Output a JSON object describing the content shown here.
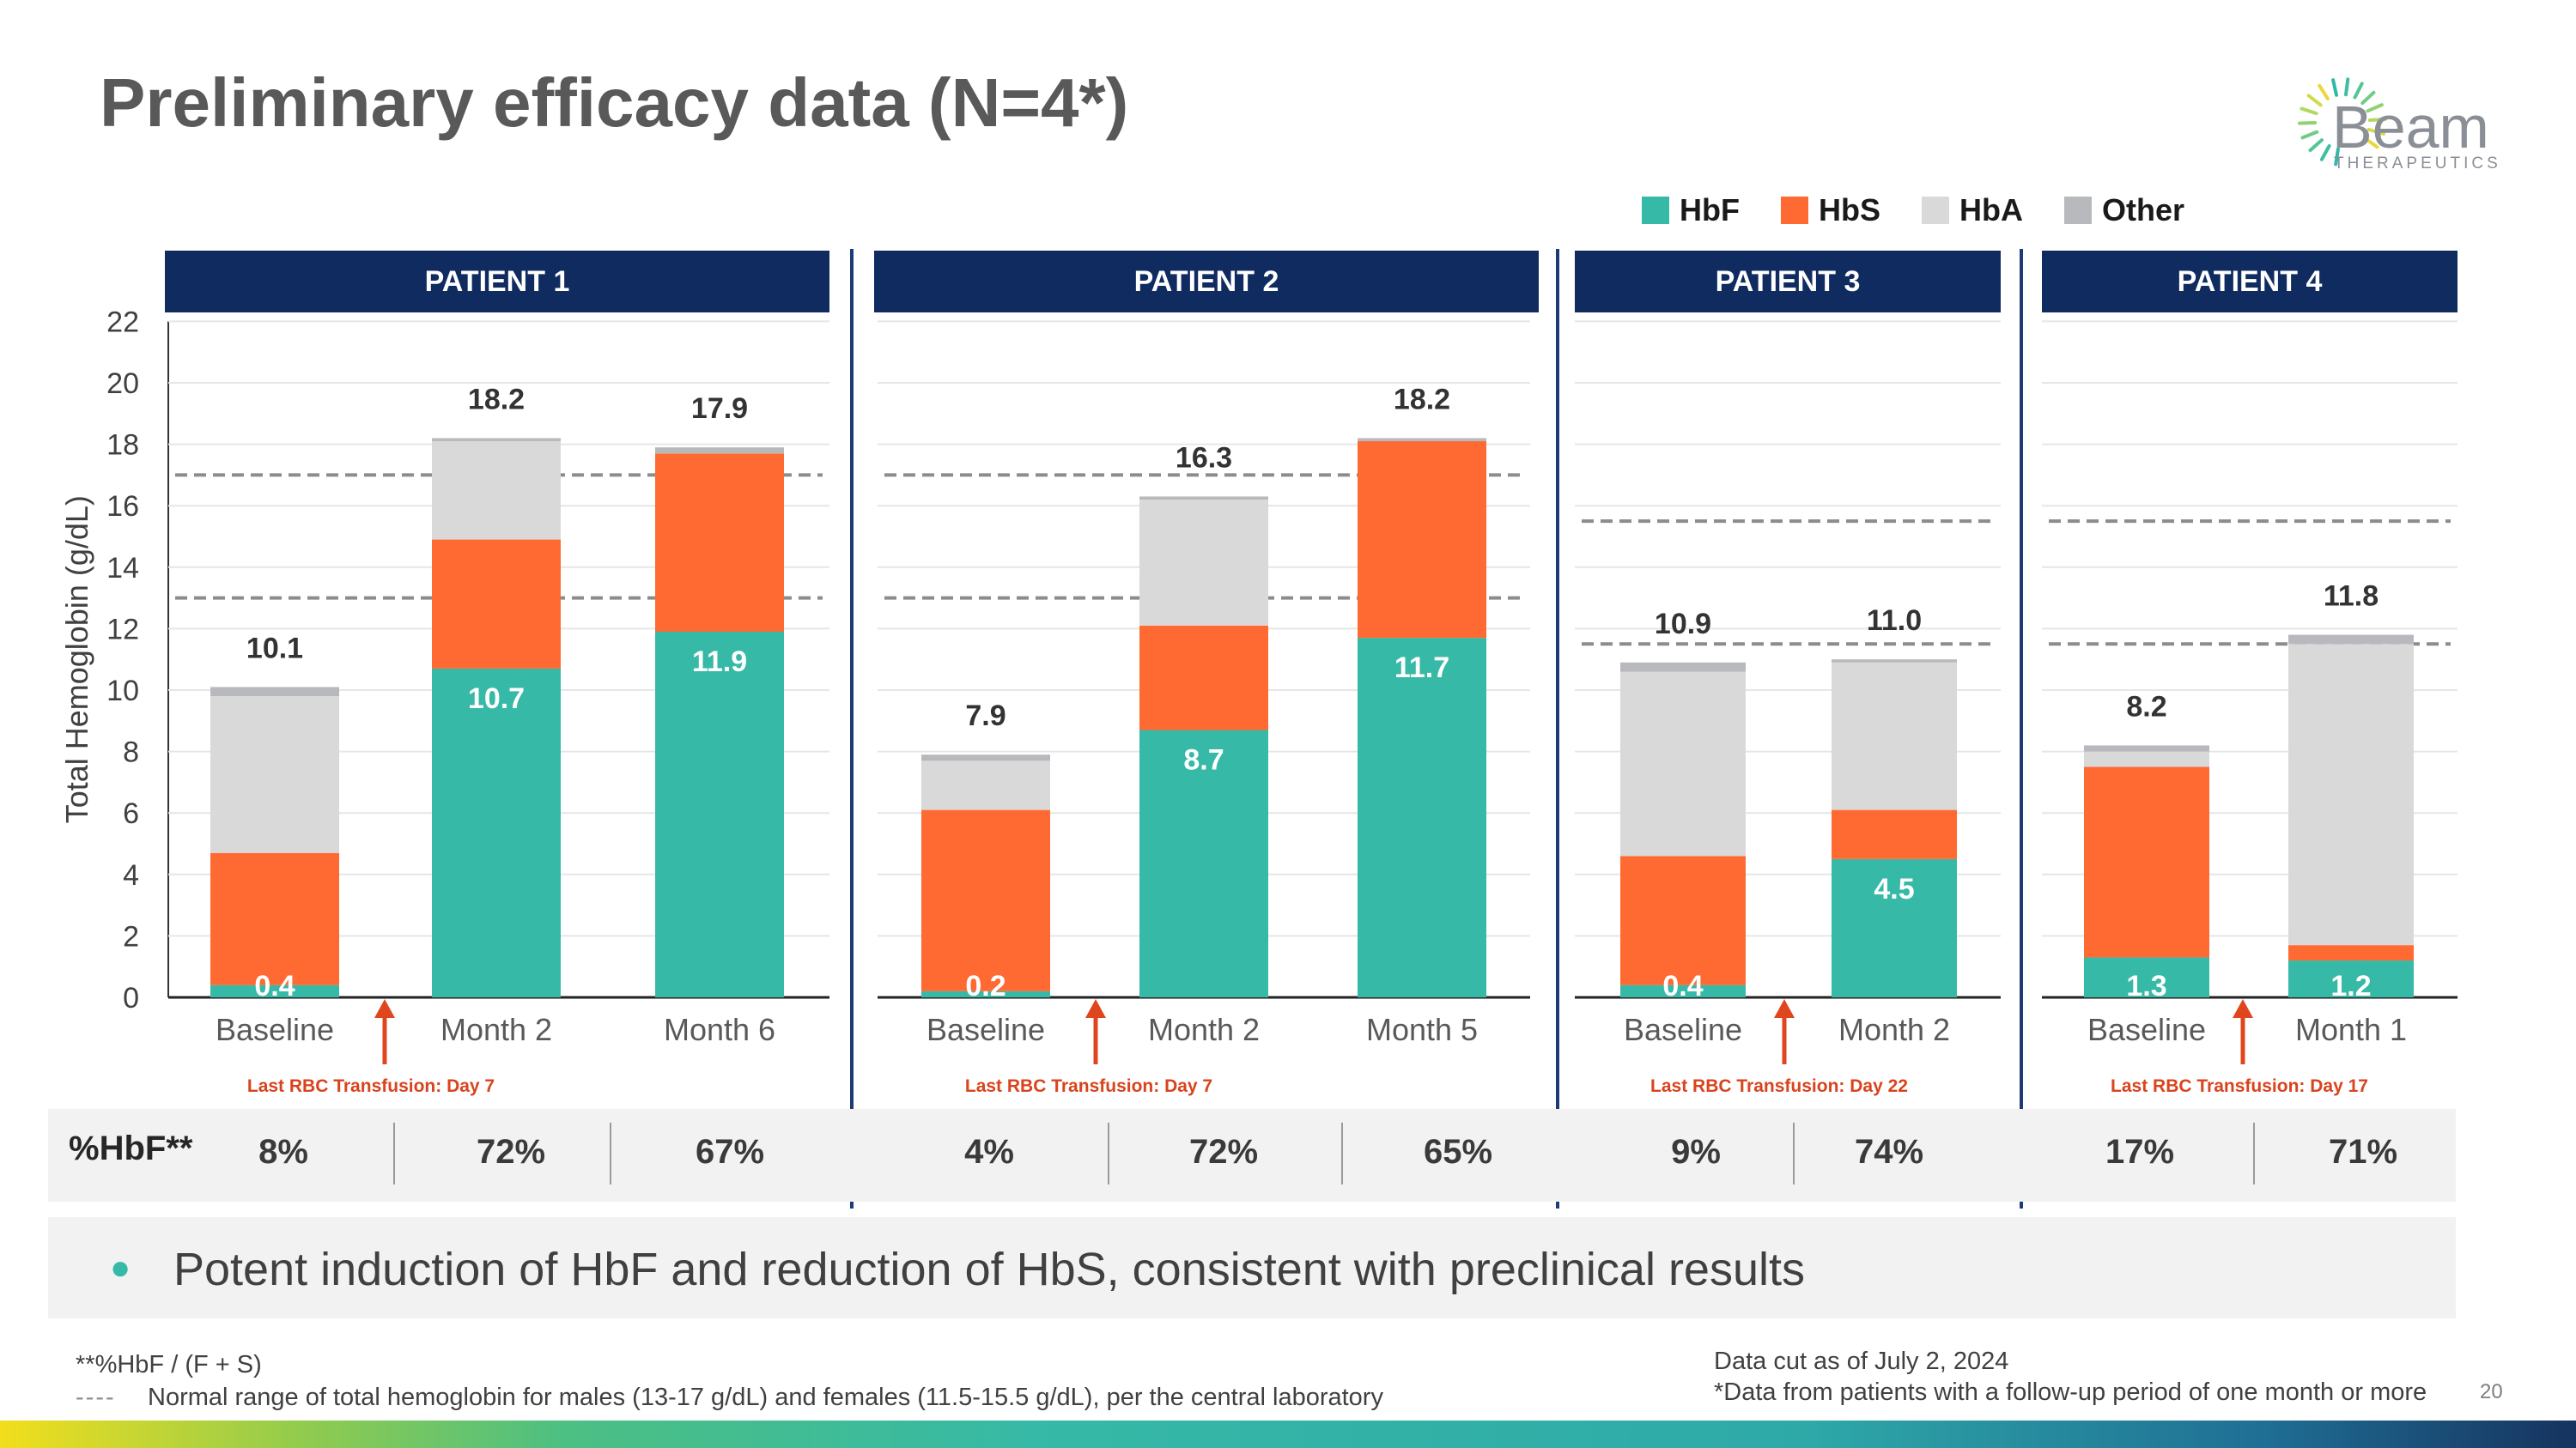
{
  "title": "Preliminary efficacy data (N=4*)",
  "logo": {
    "name": "Beam",
    "sub": "THERAPEUTICS"
  },
  "legend": [
    {
      "label": "HbF",
      "color": "#36b9a6"
    },
    {
      "label": "HbS",
      "color": "#ff6a33"
    },
    {
      "label": "HbA",
      "color": "#d9d9d9"
    },
    {
      "label": "Other",
      "color": "#b7b9bd"
    }
  ],
  "patients": [
    {
      "label": "PATIENT 1",
      "transfusion": "Last RBC Transfusion: Day 7",
      "hbf_pct": [
        "8%",
        "72%",
        "67%"
      ]
    },
    {
      "label": "PATIENT 2",
      "transfusion": "Last RBC Transfusion: Day 7",
      "hbf_pct": [
        "4%",
        "72%",
        "65%"
      ]
    },
    {
      "label": "PATIENT 3",
      "transfusion": "Last RBC Transfusion: Day 22",
      "hbf_pct": [
        "9%",
        "74%"
      ]
    },
    {
      "label": "PATIENT 4",
      "transfusion": "Last RBC Transfusion: Day 17",
      "hbf_pct": [
        "17%",
        "71%"
      ]
    }
  ],
  "hbf_row_label": "%HbF**",
  "bullet": "Potent induction of HbF and reduction of HbS, consistent with preclinical results",
  "footnotes": {
    "hbf_def": "**%HbF / (F + S)",
    "dash_sample": "----",
    "normal_range": "Normal range of total hemoglobin for males (13-17 g/dL) and females (11.5-15.5 g/dL), per the central laboratory",
    "data_cut": "Data cut as of July 2, 2024",
    "followup": "*Data from patients with a follow-up period of one month or more",
    "page": "20"
  },
  "chart_data": {
    "type": "bar",
    "stacked": true,
    "ylabel": "Total Hemoglobin (g/dL)",
    "ylim": [
      0,
      22
    ],
    "yticks": [
      0,
      2,
      4,
      6,
      8,
      10,
      12,
      14,
      16,
      18,
      20,
      22
    ],
    "series_names": [
      "HbF",
      "HbS",
      "HbA",
      "Other"
    ],
    "reference_ranges": {
      "male": [
        13,
        17
      ],
      "female": [
        11.5,
        15.5
      ]
    },
    "panels": [
      {
        "patient": "PATIENT 1",
        "normal_range": [
          13,
          17
        ],
        "bars": [
          {
            "category": "Baseline",
            "total": "10.1",
            "hbf_label": "0.4",
            "values": [
              0.4,
              4.3,
              5.1,
              0.3
            ]
          },
          {
            "category": "Month 2",
            "total": "18.2",
            "hbf_label": "10.7",
            "values": [
              10.7,
              4.2,
              3.2,
              0.1
            ]
          },
          {
            "category": "Month 6",
            "total": "17.9",
            "hbf_label": "11.9",
            "values": [
              11.9,
              5.8,
              0,
              0.2
            ]
          }
        ]
      },
      {
        "patient": "PATIENT 2",
        "normal_range": [
          13,
          17
        ],
        "bars": [
          {
            "category": "Baseline",
            "total": "7.9",
            "hbf_label": "0.2",
            "values": [
              0.2,
              5.9,
              1.6,
              0.2
            ]
          },
          {
            "category": "Month 2",
            "total": "16.3",
            "hbf_label": "8.7",
            "values": [
              8.7,
              3.4,
              4.1,
              0.1
            ]
          },
          {
            "category": "Month 5",
            "total": "18.2",
            "hbf_label": "11.7",
            "values": [
              11.7,
              6.4,
              0,
              0.1
            ]
          }
        ]
      },
      {
        "patient": "PATIENT 3",
        "normal_range": [
          11.5,
          15.5
        ],
        "bars": [
          {
            "category": "Baseline",
            "total": "10.9",
            "hbf_label": "0.4",
            "values": [
              0.4,
              4.2,
              6.0,
              0.3
            ]
          },
          {
            "category": "Month 2",
            "total": "11.0",
            "hbf_label": "4.5",
            "values": [
              4.5,
              1.6,
              4.8,
              0.1
            ]
          }
        ]
      },
      {
        "patient": "PATIENT 4",
        "normal_range": [
          11.5,
          15.5
        ],
        "bars": [
          {
            "category": "Baseline",
            "total": "8.2",
            "hbf_label": "1.3",
            "values": [
              1.3,
              6.2,
              0.5,
              0.2
            ]
          },
          {
            "category": "Month 1",
            "total": "11.8",
            "hbf_label": "1.2",
            "values": [
              1.2,
              0.5,
              9.8,
              0.3
            ]
          }
        ]
      }
    ]
  }
}
